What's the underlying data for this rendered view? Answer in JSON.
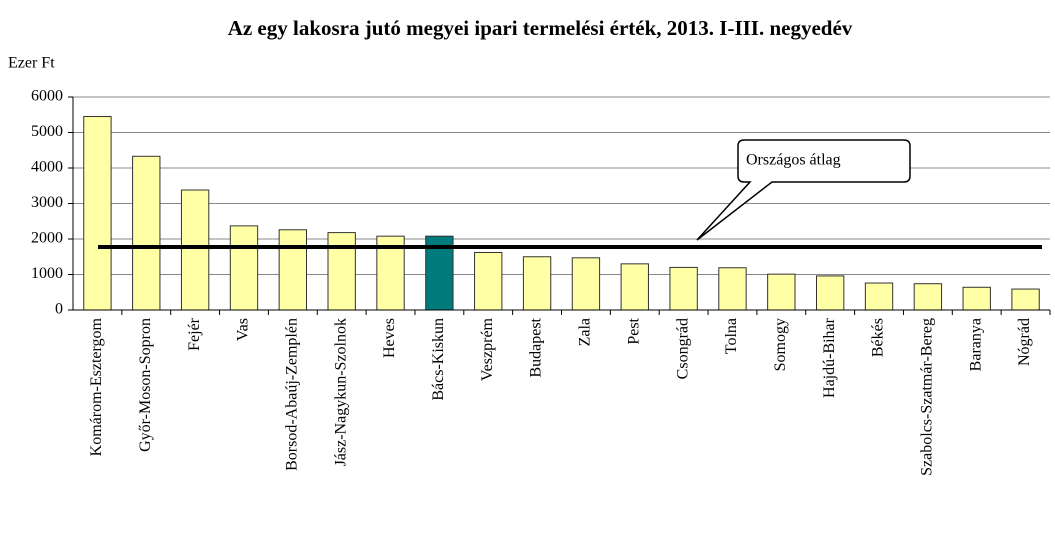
{
  "chart_data": {
    "type": "bar",
    "title": "Az egy lakosra jutó megyei ipari termelési érték, 2013. I-III. negyedév",
    "y_axis_label": "Ezer Ft",
    "categories": [
      "Komárom-Esztergom",
      "Győr-Moson-Sopron",
      "Fejér",
      "Vas",
      "Borsod-Abaúj-Zemplén",
      "Jász-Nagykun-Szolnok",
      "Heves",
      "Bács-Kiskun",
      "Veszprém",
      "Budapest",
      "Zala",
      "Pest",
      "Csongrád",
      "Tolna",
      "Somogy",
      "Hajdú-Bihar",
      "Békés",
      "Szabolcs-Szatmár-Bereg",
      "Baranya",
      "Nógrád"
    ],
    "values": [
      5450,
      4330,
      3380,
      2370,
      2260,
      2180,
      2080,
      2080,
      1620,
      1500,
      1470,
      1300,
      1200,
      1190,
      1010,
      960,
      760,
      740,
      640,
      590
    ],
    "colors": [
      "#ffffa6",
      "#ffffa6",
      "#ffffa6",
      "#ffffa6",
      "#ffffa6",
      "#ffffa6",
      "#ffffa6",
      "#007b7b",
      "#ffffa6",
      "#ffffa6",
      "#ffffa6",
      "#ffffa6",
      "#ffffa6",
      "#ffffa6",
      "#ffffa6",
      "#ffffa6",
      "#ffffa6",
      "#ffffa6",
      "#ffffa6",
      "#ffffa6"
    ],
    "reference_line": {
      "label": "Országos átlag",
      "value": 1775
    },
    "ylim": [
      0,
      6000
    ],
    "yticks": [
      0,
      1000,
      2000,
      3000,
      4000,
      5000,
      6000
    ],
    "grid": true
  }
}
